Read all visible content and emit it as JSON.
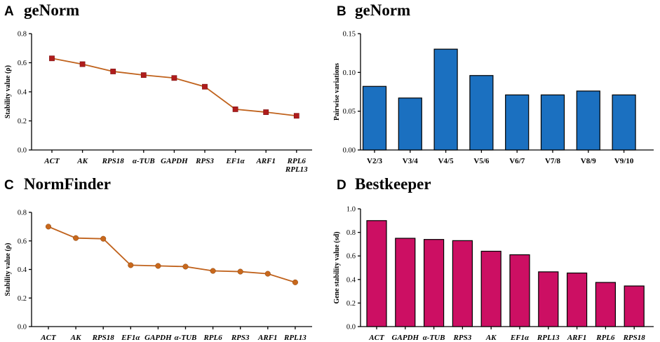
{
  "colors": {
    "line_orange": "#c0621c",
    "marker_red": "#b01c1c",
    "marker_orange": "#c8681c",
    "bar_blue": "#1b70c0",
    "bar_magenta": "#cc0f63"
  },
  "chart_data": [
    {
      "id": "A",
      "panel_letter": "A",
      "title": "geNorm",
      "type": "line",
      "marker": "square",
      "categories": [
        "ACT",
        "AK",
        "RPS18",
        "α-TUB",
        "GAPDH",
        "RPS3",
        "EF1α",
        "ARF1",
        "RPL6\nRPL13"
      ],
      "values": [
        0.63,
        0.59,
        0.54,
        0.515,
        0.495,
        0.435,
        0.28,
        0.26,
        0.235
      ],
      "ylabel": "Stability value (ρ)",
      "xlabel": "",
      "ylim": [
        0,
        0.8
      ],
      "yticks": [
        "0.0",
        "0.2",
        "0.4",
        "0.6",
        "0.8"
      ],
      "grid": false
    },
    {
      "id": "B",
      "panel_letter": "B",
      "title": "geNorm",
      "type": "bar",
      "categories": [
        "V2/3",
        "V3/4",
        "V4/5",
        "V5/6",
        "V6/7",
        "V7/8",
        "V8/9",
        "V9/10"
      ],
      "values": [
        0.082,
        0.067,
        0.13,
        0.096,
        0.071,
        0.071,
        0.076,
        0.071
      ],
      "ylabel": "Pairwise variations",
      "xlabel": "",
      "ylim": [
        0,
        0.15
      ],
      "yticks": [
        "0.00",
        "0.05",
        "0.10",
        "0.15"
      ],
      "grid": false
    },
    {
      "id": "C",
      "panel_letter": "C",
      "title": "NormFinder",
      "type": "line",
      "marker": "circle",
      "categories": [
        "ACT",
        "AK",
        "RPS18",
        "EF1α",
        "GAPDH",
        "α-TUB",
        "RPL6",
        "RPS3",
        "ARF1",
        "RPL13"
      ],
      "values": [
        0.7,
        0.62,
        0.615,
        0.43,
        0.425,
        0.42,
        0.39,
        0.385,
        0.37,
        0.31
      ],
      "ylabel": "Stability value (ρ)",
      "xlabel": "",
      "ylim": [
        0,
        0.8
      ],
      "yticks": [
        "0.0",
        "0.2",
        "0.4",
        "0.6",
        "0.8"
      ],
      "grid": false
    },
    {
      "id": "D",
      "panel_letter": "D",
      "title": "Bestkeeper",
      "type": "bar",
      "categories": [
        "ACT",
        "GAPDH",
        "α-TUB",
        "RPS3",
        "AK",
        "EF1α",
        "RPL13",
        "ARF1",
        "RPL6",
        "RPS18"
      ],
      "values": [
        0.9,
        0.75,
        0.74,
        0.73,
        0.64,
        0.61,
        0.465,
        0.455,
        0.375,
        0.345
      ],
      "ylabel": "Gene stability value (sd)",
      "xlabel": "",
      "ylim": [
        0,
        1.0
      ],
      "yticks": [
        "0.0",
        "0.2",
        "0.4",
        "0.6",
        "0.8",
        "1.0"
      ],
      "grid": false
    }
  ]
}
